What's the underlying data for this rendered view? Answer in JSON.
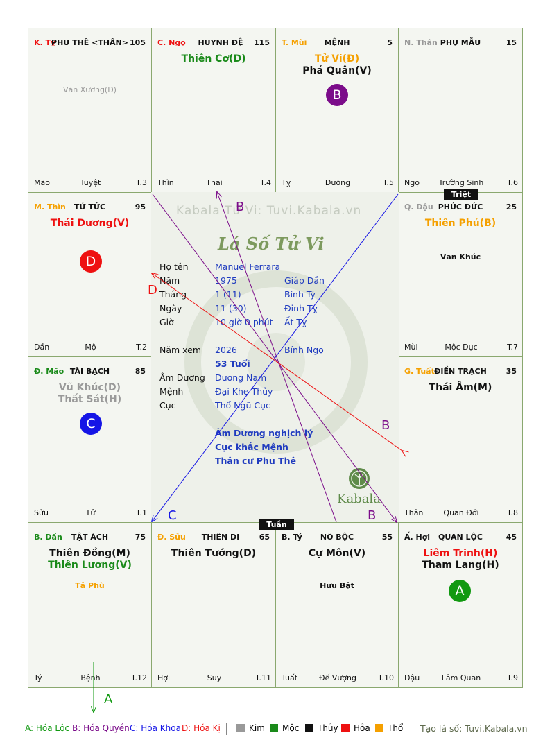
{
  "colors": {
    "kim": "#999999",
    "moc": "#1a8a1a",
    "thuy": "#111111",
    "hoa": "#ee1111",
    "tho": "#f5a000",
    "badge_a": "#119911",
    "badge_b": "#7b0c8a",
    "badge_c": "#1515e6",
    "badge_d": "#ee1111"
  },
  "cells": {
    "ty": {
      "can": "K. Tỵ",
      "name": "PHU THÊ <THÂN>",
      "num": "105",
      "minor": "Văn Xương(D)",
      "f_left": "Mão",
      "f_center": "Tuyệt",
      "f_right": "T.3"
    },
    "ngo": {
      "can": "C. Ngọ",
      "name": "HUYNH ĐỆ",
      "num": "115",
      "star1": "Thiên Cơ(D)",
      "f_left": "Thìn",
      "f_center": "Thai",
      "f_right": "T.4"
    },
    "mui": {
      "can": "T. Mùi",
      "name": "MỆNH",
      "num": "5",
      "star1": "Tử Vi(Đ)",
      "star2": "Phá Quân(V)",
      "badge": "B",
      "f_left": "Tỵ",
      "f_center": "Dưỡng",
      "f_right": "T.5"
    },
    "than": {
      "can": "N. Thân",
      "name": "PHỤ MẪU",
      "num": "15",
      "f_left": "Ngọ",
      "f_center": "Trường Sinh",
      "f_right": "T.6"
    },
    "thin": {
      "can": "M. Thìn",
      "name": "TỬ TỨC",
      "num": "95",
      "star1": "Thái Dương(V)",
      "badge": "D",
      "f_left": "Dần",
      "f_center": "Mộ",
      "f_right": "T.2"
    },
    "dau": {
      "can": "Q. Dậu",
      "name": "PHÚC ĐỨC",
      "num": "25",
      "star1": "Thiên Phủ(B)",
      "minor": "Văn Khúc",
      "f_left": "Mùi",
      "f_center": "Mộc Dục",
      "f_right": "T.7"
    },
    "mao": {
      "can": "Đ. Mão",
      "name": "TÀI BẠCH",
      "num": "85",
      "star1": "Vũ Khúc(D)",
      "star2": "Thất Sát(H)",
      "badge": "C",
      "f_left": "Sửu",
      "f_center": "Tử",
      "f_right": "T.1"
    },
    "tuat": {
      "can": "G. Tuất",
      "name": "ĐIỀN TRẠCH",
      "num": "35",
      "star1": "Thái Âm(M)",
      "f_left": "Thân",
      "f_center": "Quan Đới",
      "f_right": "T.8"
    },
    "dan": {
      "can": "B. Dần",
      "name": "TẬT ÁCH",
      "num": "75",
      "star1": "Thiên Đồng(M)",
      "star2": "Thiên Lương(V)",
      "minor": "Tả Phù",
      "f_left": "Tý",
      "f_center": "Bệnh",
      "f_right": "T.12"
    },
    "suu": {
      "can": "Đ. Sửu",
      "name": "THIÊN DI",
      "num": "65",
      "star1": "Thiên Tướng(D)",
      "f_left": "Hợi",
      "f_center": "Suy",
      "f_right": "T.11"
    },
    "tyrat": {
      "can": "B. Tý",
      "name": "NÔ BỘC",
      "num": "55",
      "star1": "Cự Môn(V)",
      "minor": "Hữu Bật",
      "f_left": "Tuất",
      "f_center": "Đế Vượng",
      "f_right": "T.10"
    },
    "hoi": {
      "can": "Ấ. Hợi",
      "name": "QUAN LỘC",
      "num": "45",
      "star1": "Liêm Trinh(H)",
      "star2": "Tham Lang(H)",
      "badge": "A",
      "f_left": "Dậu",
      "f_center": "Lâm Quan",
      "f_right": "T.9"
    }
  },
  "tags": {
    "triet": "Triệt",
    "tuan": "Tuần"
  },
  "center": {
    "watermark": "Kabala Tử Vi: Tuvi.Kabala.vn",
    "title": "Lá Số Tử Vi",
    "rows": [
      {
        "label": "Họ tên",
        "value": "Manuel Ferrara",
        "extra": ""
      },
      {
        "label": "Năm",
        "value": "1975",
        "extra": "Giáp Dần"
      },
      {
        "label": "Tháng",
        "value": "1  (11)",
        "extra": "Bính Tý"
      },
      {
        "label": "Ngày",
        "value": "11  (30)",
        "extra": "Đinh Tỵ"
      },
      {
        "label": "Giờ",
        "value": "10 giờ 0 phút",
        "extra": "Ất Tỵ"
      }
    ],
    "nam_xem_label": "Năm xem",
    "nam_xem": "2026",
    "nam_xem_can": "Bính Ngọ",
    "tuoi": "53 Tuổi",
    "am_duong_label": "Âm Dương",
    "am_duong": "Dương Nam",
    "menh_label": "Mệnh",
    "menh": "Đại Khe Thủy",
    "cuc_label": "Cục",
    "cuc": "Thổ Ngũ Cục",
    "notes": [
      "Âm Dương nghịch lý",
      "Cục khắc Mệnh",
      "Thân cư Phu Thê"
    ],
    "logo": "Kabala"
  },
  "arrow_labels": {
    "a": "A",
    "b": "B",
    "c": "C",
    "d": "D"
  },
  "legend": {
    "a": "A: Hóa Lộc",
    "b": "B: Hóa Quyền",
    "c": "C: Hóa Khoa",
    "d": "D: Hóa Kị",
    "kim": "Kim",
    "moc": "Mộc",
    "thuy": "Thủy",
    "hoa": "Hỏa",
    "tho": "Thổ",
    "site": "Tạo lá số: Tuvi.Kabala.vn"
  }
}
